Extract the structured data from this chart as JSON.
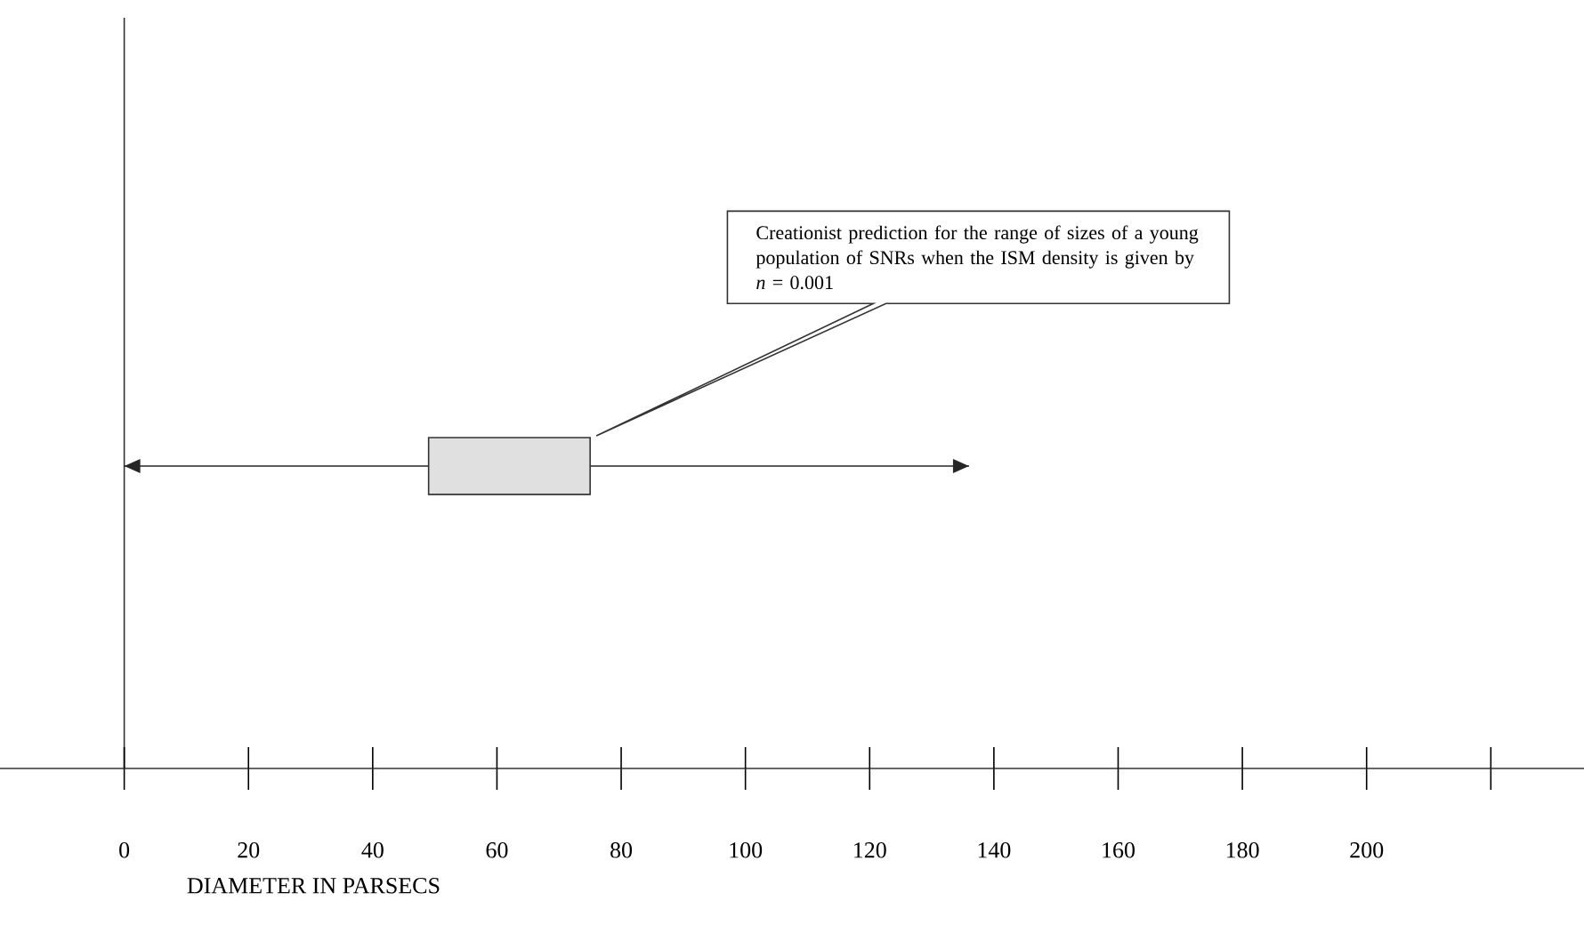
{
  "chart_data": {
    "type": "bar",
    "orientation": "horizontal",
    "categories": [
      null
    ],
    "base": [
      49
    ],
    "values": [
      26
    ],
    "errors": [
      [
        0,
        136
      ]
    ],
    "color": "#e0e0e0",
    "xlabel": "DIAMETER IN PARSECS",
    "xlim": [
      -20,
      235
    ],
    "xticks": [
      0,
      20,
      40,
      60,
      80,
      100,
      120,
      140,
      160,
      180,
      200,
      {
        "value": 220,
        "label": null
      }
    ],
    "annotations": [
      "Creationist prediction  for  the range of sizes of a young population of SNRs when the  ISM density  is given by  *n* = 0.001"
    ]
  }
}
